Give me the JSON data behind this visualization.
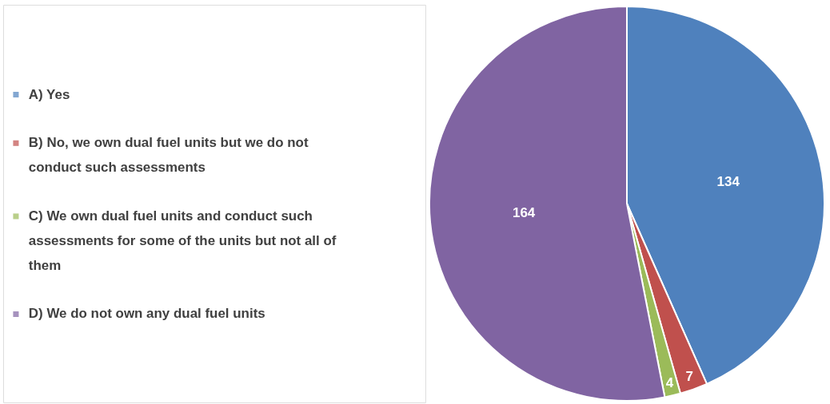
{
  "chart_data": {
    "type": "pie",
    "categories": [
      "A) Yes",
      "B) No, we own dual fuel units but we do not conduct such assessments",
      "C) We own dual fuel units and conduct such assessments for some of the units but not all of them",
      "D) We do not own any dual fuel units"
    ],
    "values": [
      134,
      7,
      4,
      164
    ],
    "colors": [
      "#4f81bd",
      "#c0504d",
      "#9bbb59",
      "#8064a2"
    ],
    "data_labels": true,
    "legend": "left"
  }
}
